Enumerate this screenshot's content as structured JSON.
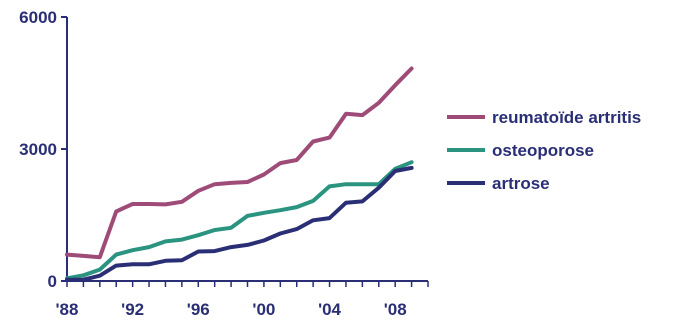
{
  "chart_data": {
    "type": "line",
    "title": "",
    "xlabel": "",
    "ylabel": "",
    "x": [
      1988,
      1989,
      1990,
      1991,
      1992,
      1993,
      1994,
      1995,
      1996,
      1997,
      1998,
      1999,
      2000,
      2001,
      2002,
      2003,
      2004,
      2005,
      2006,
      2007,
      2008,
      2009
    ],
    "x_ticks": [
      {
        "value": 1988,
        "label": "'88"
      },
      {
        "value": 1992,
        "label": "'92"
      },
      {
        "value": 1996,
        "label": "'96"
      },
      {
        "value": 2000,
        "label": "'00"
      },
      {
        "value": 2004,
        "label": "'04"
      },
      {
        "value": 2008,
        "label": "'08"
      }
    ],
    "xlim": [
      1988,
      2010
    ],
    "ylim": [
      0,
      6000
    ],
    "y_ticks": [
      {
        "value": 0,
        "label": "0"
      },
      {
        "value": 3000,
        "label": "3000"
      },
      {
        "value": 6000,
        "label": "6000"
      }
    ],
    "grid": false,
    "legend_position": "right",
    "series": [
      {
        "name": "reumatoïde artritis",
        "color": "#9e4b78",
        "values": [
          600,
          570,
          540,
          1580,
          1750,
          1750,
          1740,
          1800,
          2050,
          2200,
          2230,
          2250,
          2420,
          2680,
          2750,
          3170,
          3260,
          3800,
          3770,
          4050,
          4450,
          4830
        ]
      },
      {
        "name": "osteoporose",
        "color": "#2a9480",
        "values": [
          60,
          130,
          260,
          600,
          700,
          770,
          900,
          940,
          1040,
          1160,
          1210,
          1480,
          1550,
          1610,
          1680,
          1820,
          2150,
          2200,
          2200,
          2200,
          2550,
          2700
        ]
      },
      {
        "name": "artrose",
        "color": "#2a2f75",
        "values": [
          30,
          30,
          120,
          350,
          380,
          380,
          460,
          470,
          670,
          680,
          770,
          820,
          920,
          1080,
          1180,
          1380,
          1430,
          1780,
          1810,
          2120,
          2500,
          2570
        ]
      }
    ],
    "axis_color": "#2a2f75",
    "tick_label_color": "#2a2f75"
  }
}
